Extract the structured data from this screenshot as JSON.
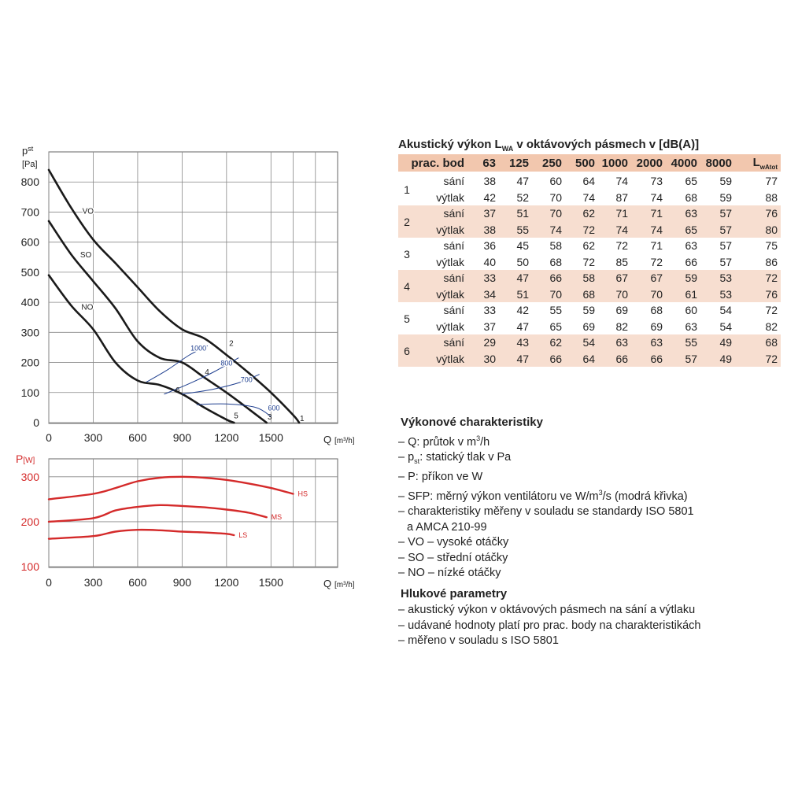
{
  "fan_chart": {
    "y_unit_symbol": "p",
    "y_unit_sub": "st",
    "y_unit": "[Pa]",
    "x_symbol": "Q",
    "x_unit": "[m³/h]",
    "x_ticks": [
      "0",
      "300",
      "600",
      "900",
      "1200",
      "1500"
    ],
    "y_ticks": [
      "0",
      "100",
      "200",
      "300",
      "400",
      "500",
      "600",
      "700",
      "800"
    ]
  },
  "power_chart": {
    "y_symbol": "P",
    "y_unit": "[W]",
    "x_symbol": "Q",
    "x_unit": "[m³/h]",
    "x_ticks": [
      "0",
      "300",
      "600",
      "900",
      "1200",
      "1500"
    ],
    "y_ticks": [
      "100",
      "200",
      "300"
    ]
  },
  "chart_data": [
    {
      "type": "line",
      "xlabel": "Q [m³/h]",
      "ylabel": "pst [Pa]",
      "xlim": [
        0,
        1950
      ],
      "ylim": [
        0,
        900
      ],
      "grid": true,
      "series": [
        {
          "name": "VO",
          "x": [
            0,
            150,
            300,
            450,
            600,
            750,
            900,
            1050,
            1200,
            1350,
            1500,
            1650,
            1690
          ],
          "y": [
            840,
            715,
            608,
            530,
            450,
            370,
            310,
            280,
            225,
            165,
            100,
            25,
            0
          ],
          "color": "#1a1a1a"
        },
        {
          "name": "SO",
          "x": [
            0,
            150,
            300,
            450,
            600,
            750,
            900,
            1050,
            1200,
            1350,
            1470
          ],
          "y": [
            670,
            560,
            470,
            380,
            270,
            215,
            200,
            150,
            100,
            45,
            0
          ],
          "color": "#1a1a1a"
        },
        {
          "name": "NO",
          "x": [
            0,
            150,
            300,
            450,
            600,
            750,
            900,
            1050,
            1200,
            1250
          ],
          "y": [
            490,
            390,
            310,
            200,
            140,
            125,
            95,
            50,
            10,
            0
          ],
          "color": "#1a1a1a"
        },
        {
          "name": "1000",
          "x": [
            660,
            800,
            950,
            1070
          ],
          "y": [
            135,
            175,
            225,
            255
          ],
          "color": "#1f3f8f"
        },
        {
          "name": "800",
          "x": [
            780,
            950,
            1120,
            1280
          ],
          "y": [
            95,
            130,
            170,
            215
          ],
          "color": "#1f3f8f"
        },
        {
          "name": "700",
          "x": [
            900,
            1100,
            1300,
            1420
          ],
          "y": [
            95,
            110,
            135,
            160
          ],
          "color": "#1f3f8f"
        },
        {
          "name": "600",
          "x": [
            1000,
            1200,
            1400,
            1500
          ],
          "y": [
            60,
            62,
            50,
            20
          ],
          "color": "#1f3f8f"
        }
      ],
      "curve_labels": [
        {
          "text": "VO",
          "x": 265,
          "y": 695
        },
        {
          "text": "SO",
          "x": 250,
          "y": 550
        },
        {
          "text": "NO",
          "x": 260,
          "y": 375
        },
        {
          "text": "1000",
          "x": 1010,
          "y": 240
        },
        {
          "text": "800",
          "x": 1200,
          "y": 190
        },
        {
          "text": "700",
          "x": 1335,
          "y": 135
        },
        {
          "text": "600",
          "x": 1520,
          "y": 40
        }
      ],
      "point_labels": [
        {
          "text": "1",
          "x": 1710,
          "y": 5
        },
        {
          "text": "2",
          "x": 1232,
          "y": 255
        },
        {
          "text": "3",
          "x": 1492,
          "y": 10
        },
        {
          "text": "4",
          "x": 1068,
          "y": 160
        },
        {
          "text": "5",
          "x": 1265,
          "y": 15
        },
        {
          "text": "6",
          "x": 870,
          "y": 100
        }
      ]
    },
    {
      "type": "line",
      "xlabel": "Q [m³/h]",
      "ylabel": "P [W]",
      "xlim": [
        0,
        1950
      ],
      "ylim": [
        100,
        340
      ],
      "grid": true,
      "series": [
        {
          "name": "HS",
          "x": [
            0,
            300,
            450,
            600,
            750,
            900,
            1050,
            1200,
            1350,
            1500,
            1650
          ],
          "y": [
            250,
            262,
            275,
            290,
            298,
            300,
            298,
            293,
            285,
            275,
            262
          ],
          "color": "#d42a2a"
        },
        {
          "name": "MS",
          "x": [
            0,
            300,
            450,
            600,
            750,
            900,
            1050,
            1200,
            1350,
            1470
          ],
          "y": [
            200,
            208,
            225,
            233,
            237,
            235,
            232,
            227,
            220,
            210
          ],
          "color": "#d42a2a"
        },
        {
          "name": "LS",
          "x": [
            0,
            300,
            450,
            600,
            750,
            900,
            1050,
            1200,
            1250
          ],
          "y": [
            162,
            168,
            178,
            182,
            181,
            178,
            176,
            173,
            170
          ],
          "color": "#d42a2a"
        }
      ]
    },
    {
      "type": "table",
      "title": "Akustický výkon LWA v oktávových pásmech v [dB(A)]",
      "columns": [
        "prac. bod",
        "63",
        "125",
        "250",
        "500",
        "1000",
        "2000",
        "4000",
        "8000",
        "LwAtot"
      ],
      "rows": [
        {
          "point": "1",
          "sani": [
            38,
            47,
            60,
            64,
            74,
            73,
            65,
            59,
            77
          ],
          "vytlak": [
            42,
            52,
            70,
            74,
            87,
            74,
            68,
            59,
            88
          ]
        },
        {
          "point": "2",
          "sani": [
            37,
            51,
            70,
            62,
            71,
            71,
            63,
            57,
            76
          ],
          "vytlak": [
            38,
            55,
            74,
            72,
            74,
            74,
            65,
            57,
            80
          ]
        },
        {
          "point": "3",
          "sani": [
            36,
            45,
            58,
            62,
            72,
            71,
            63,
            57,
            75
          ],
          "vytlak": [
            40,
            50,
            68,
            72,
            85,
            72,
            66,
            57,
            86
          ]
        },
        {
          "point": "4",
          "sani": [
            33,
            47,
            66,
            58,
            67,
            67,
            59,
            53,
            72
          ],
          "vytlak": [
            34,
            51,
            70,
            68,
            70,
            70,
            61,
            53,
            76
          ]
        },
        {
          "point": "5",
          "sani": [
            33,
            42,
            55,
            59,
            69,
            68,
            60,
            54,
            72
          ],
          "vytlak": [
            37,
            47,
            65,
            69,
            82,
            69,
            63,
            54,
            82
          ]
        },
        {
          "point": "6",
          "sani": [
            29,
            43,
            62,
            54,
            63,
            63,
            55,
            49,
            68
          ],
          "vytlak": [
            30,
            47,
            66,
            64,
            66,
            66,
            57,
            49,
            72
          ]
        }
      ]
    }
  ],
  "acoustic": {
    "title_pre": "Akustický výkon L",
    "title_sub": "WA",
    "title_post": " v oktávových pásmech v [dB(A)]",
    "col_point": "prac. bod",
    "freqs": [
      "63",
      "125",
      "250",
      "500",
      "1000",
      "2000",
      "4000",
      "8000"
    ],
    "col_total": "L",
    "col_total_sub": "wAtot",
    "row_sani": "sání",
    "row_vytlak": "výtlak"
  },
  "perf": {
    "title": "Výkonové charakteristiky",
    "q_pre": "– Q: průtok v m",
    "q_sup": "3",
    "q_post": "/h",
    "p_pre": "– p",
    "p_sub": "st",
    "p_post": ": statický tlak v Pa",
    "power": "– P: příkon ve W",
    "sfp_pre": "– SFP: měrný výkon ventilátoru ve W/m",
    "sfp_sup": "3",
    "sfp_post": "/s (modrá křivka)",
    "std_1": "– charakteristiky měřeny v souladu se standardy ISO 5801",
    "std_2": "a AMCA 210-99",
    "vo": "– VO – vysoké otáčky",
    "so": "– SO – střední otáčky",
    "no": "– NO – nízké otáčky"
  },
  "noise": {
    "title": "Hlukové parametry",
    "line1": "– akustický výkon v oktávových pásmech na sání a výtlaku",
    "line2": "– udávané hodnoty platí pro prac. body na charakteristikách",
    "line3": "– měřeno v souladu s ISO 5801"
  }
}
